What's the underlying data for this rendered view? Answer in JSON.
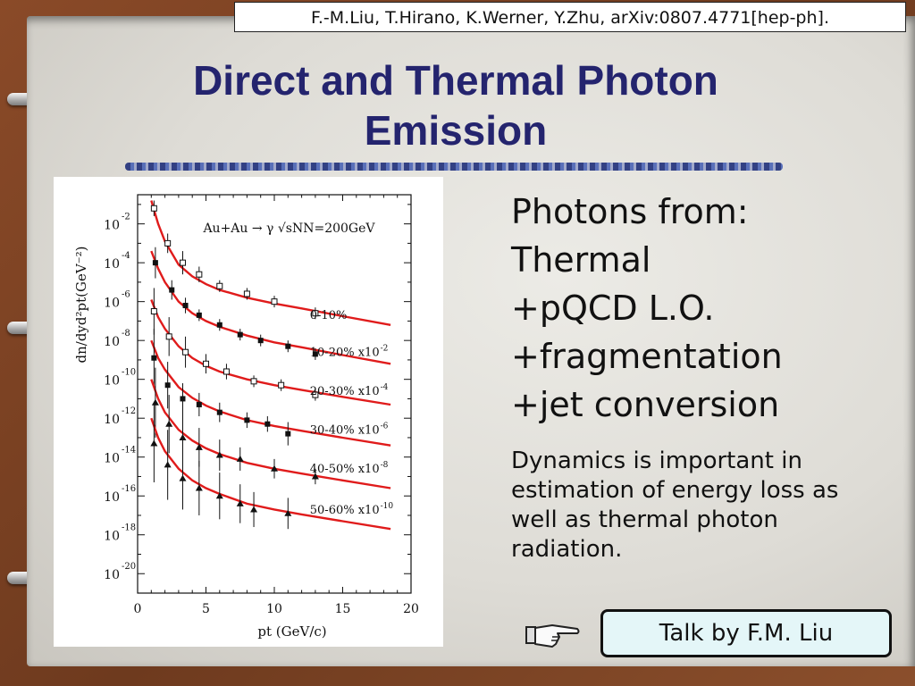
{
  "citation": "F.-M.Liu, T.Hirano, K.Werner, Y.Zhu, arXiv:0807.4771[hep-ph].",
  "title_line1": "Direct and Thermal Photon",
  "title_line2": "Emission",
  "photon_list": [
    "Photons from:",
    "Thermal",
    "+pQCD L.O.",
    "+fragmentation",
    "+jet conversion"
  ],
  "dynamics_text": "Dynamics is important in estimation of energy loss as well as thermal photon radiation.",
  "talk_button": "Talk by F.M. Liu",
  "icons": {
    "hand": "pointing-hand-icon"
  },
  "colors": {
    "title": "#24246e",
    "curve": "#e01b1b",
    "button_bg": "#e4f6f8"
  },
  "chart_data": {
    "type": "scatter",
    "title": "Au+Au → γ √sNN=200GeV",
    "xlabel": "pt (GeV/c)",
    "ylabel": "dn/dyd²pt(GeV⁻²)",
    "xlim": [
      0,
      20
    ],
    "ylim_log10": [
      -21,
      -0.5
    ],
    "yscale": "log",
    "x_ticks": [
      "0",
      "5",
      "10",
      "15",
      "20"
    ],
    "y_ticks": [
      {
        "exp": -2,
        "label": "-2"
      },
      {
        "exp": -4,
        "label": "-4"
      },
      {
        "exp": -6,
        "label": "-6"
      },
      {
        "exp": -8,
        "label": "-8"
      },
      {
        "exp": -10,
        "label": "-10"
      },
      {
        "exp": -12,
        "label": "-12"
      },
      {
        "exp": -14,
        "label": "-14"
      },
      {
        "exp": -16,
        "label": "-16"
      },
      {
        "exp": -18,
        "label": "-18"
      },
      {
        "exp": -20,
        "label": "-20"
      }
    ],
    "series": [
      {
        "name": "0-10%",
        "label_at_log10": -6.9,
        "curve_x": [
          1.0,
          1.5,
          2.0,
          3.0,
          4.0,
          5.0,
          6.0,
          8.0,
          10.0,
          12.0,
          15.0,
          18.5
        ],
        "curve_log10": [
          -0.8,
          -2.0,
          -2.9,
          -4.1,
          -4.7,
          -5.1,
          -5.4,
          -5.8,
          -6.1,
          -6.35,
          -6.75,
          -7.2
        ],
        "marker": "hollow",
        "points": [
          {
            "x": 1.2,
            "y": -1.2,
            "err": 0.4
          },
          {
            "x": 2.2,
            "y": -3.0,
            "err": 0.5
          },
          {
            "x": 3.3,
            "y": -4.0,
            "err": 0.6
          },
          {
            "x": 4.5,
            "y": -4.6,
            "err": 0.4
          },
          {
            "x": 6.0,
            "y": -5.2,
            "err": 0.3
          },
          {
            "x": 8.0,
            "y": -5.6,
            "err": 0.3
          },
          {
            "x": 10.0,
            "y": -6.0,
            "err": 0.3
          },
          {
            "x": 13.0,
            "y": -6.6,
            "err": 0.3
          }
        ]
      },
      {
        "name": "10-20% x10",
        "name_exp": "-2",
        "label_at_log10": -8.8,
        "curve_x": [
          1.0,
          1.5,
          2.0,
          3.0,
          4.0,
          5.0,
          6.0,
          8.0,
          10.0,
          12.0,
          15.0,
          18.5
        ],
        "curve_log10": [
          -3.4,
          -4.3,
          -5.0,
          -6.0,
          -6.6,
          -7.0,
          -7.3,
          -7.75,
          -8.1,
          -8.35,
          -8.75,
          -9.2
        ],
        "marker": "filled",
        "points": [
          {
            "x": 1.3,
            "y": -4.0,
            "err": 0.8
          },
          {
            "x": 2.5,
            "y": -5.4,
            "err": 0.5
          },
          {
            "x": 3.5,
            "y": -6.2,
            "err": 0.4
          },
          {
            "x": 4.5,
            "y": -6.7,
            "err": 0.3
          },
          {
            "x": 6.0,
            "y": -7.2,
            "err": 0.3
          },
          {
            "x": 7.5,
            "y": -7.7,
            "err": 0.3
          },
          {
            "x": 9.0,
            "y": -8.0,
            "err": 0.3
          },
          {
            "x": 11.0,
            "y": -8.3,
            "err": 0.3
          },
          {
            "x": 13.0,
            "y": -8.7,
            "err": 0.3
          }
        ]
      },
      {
        "name": "20-30% x10",
        "name_exp": "-4",
        "label_at_log10": -10.8,
        "curve_x": [
          1.0,
          1.5,
          2.0,
          3.0,
          4.0,
          5.0,
          6.0,
          8.0,
          10.0,
          12.0,
          15.0,
          18.5
        ],
        "curve_log10": [
          -5.9,
          -6.8,
          -7.4,
          -8.3,
          -8.9,
          -9.3,
          -9.6,
          -10.0,
          -10.3,
          -10.55,
          -10.9,
          -11.3
        ],
        "marker": "hollow",
        "points": [
          {
            "x": 1.2,
            "y": -6.5,
            "err": 1.2
          },
          {
            "x": 2.3,
            "y": -7.8,
            "err": 1.0
          },
          {
            "x": 3.5,
            "y": -8.6,
            "err": 0.8
          },
          {
            "x": 5.0,
            "y": -9.2,
            "err": 0.5
          },
          {
            "x": 6.5,
            "y": -9.6,
            "err": 0.4
          },
          {
            "x": 8.5,
            "y": -10.1,
            "err": 0.3
          },
          {
            "x": 10.5,
            "y": -10.3,
            "err": 0.3
          },
          {
            "x": 13.0,
            "y": -10.8,
            "err": 0.3
          }
        ]
      },
      {
        "name": "30-40% x10",
        "name_exp": "-6",
        "label_at_log10": -12.8,
        "curve_x": [
          1.0,
          1.5,
          2.0,
          3.0,
          4.0,
          5.0,
          6.0,
          8.0,
          10.0,
          12.0,
          15.0,
          18.5
        ],
        "curve_log10": [
          -8.0,
          -8.9,
          -9.5,
          -10.4,
          -10.95,
          -11.35,
          -11.65,
          -12.1,
          -12.4,
          -12.65,
          -13.0,
          -13.4
        ],
        "marker": "filled",
        "points": [
          {
            "x": 1.2,
            "y": -8.9,
            "err": 1.5
          },
          {
            "x": 2.2,
            "y": -10.3,
            "err": 1.2
          },
          {
            "x": 3.3,
            "y": -11.0,
            "err": 0.8
          },
          {
            "x": 4.5,
            "y": -11.3,
            "err": 0.6
          },
          {
            "x": 6.0,
            "y": -11.7,
            "err": 0.5
          },
          {
            "x": 8.0,
            "y": -12.1,
            "err": 0.4
          },
          {
            "x": 9.5,
            "y": -12.3,
            "err": 0.4
          },
          {
            "x": 11.0,
            "y": -12.8,
            "err": 0.6
          }
        ]
      },
      {
        "name": "40-50% x10",
        "name_exp": "-8",
        "label_at_log10": -14.8,
        "curve_x": [
          1.0,
          1.5,
          2.0,
          3.0,
          4.0,
          5.0,
          6.0,
          8.0,
          10.0,
          12.0,
          15.0,
          18.5
        ],
        "curve_log10": [
          -10.0,
          -11.0,
          -11.7,
          -12.6,
          -13.15,
          -13.55,
          -13.85,
          -14.3,
          -14.6,
          -14.85,
          -15.2,
          -15.6
        ],
        "marker": "triangle",
        "points": [
          {
            "x": 1.3,
            "y": -11.2,
            "err": 1.8
          },
          {
            "x": 2.3,
            "y": -12.3,
            "err": 1.5
          },
          {
            "x": 3.3,
            "y": -13.0,
            "err": 1.3
          },
          {
            "x": 4.5,
            "y": -13.5,
            "err": 1.0
          },
          {
            "x": 6.0,
            "y": -13.9,
            "err": 0.8
          },
          {
            "x": 7.5,
            "y": -14.1,
            "err": 0.6
          },
          {
            "x": 10.0,
            "y": -14.6,
            "err": 0.5
          },
          {
            "x": 13.0,
            "y": -15.0,
            "err": 0.4
          }
        ]
      },
      {
        "name": "50-60% x10",
        "name_exp": "-10",
        "label_at_log10": -16.9,
        "curve_x": [
          1.0,
          1.5,
          2.0,
          3.0,
          4.0,
          5.0,
          6.0,
          8.0,
          10.0,
          12.0,
          15.0,
          18.5
        ],
        "curve_log10": [
          -12.0,
          -13.0,
          -13.7,
          -14.6,
          -15.2,
          -15.6,
          -15.9,
          -16.4,
          -16.7,
          -16.95,
          -17.3,
          -17.7
        ],
        "marker": "triangle",
        "points": [
          {
            "x": 1.2,
            "y": -13.3,
            "err": 2.0
          },
          {
            "x": 2.2,
            "y": -14.4,
            "err": 1.8
          },
          {
            "x": 3.3,
            "y": -15.1,
            "err": 1.6
          },
          {
            "x": 4.5,
            "y": -15.6,
            "err": 1.4
          },
          {
            "x": 6.0,
            "y": -16.0,
            "err": 1.2
          },
          {
            "x": 7.5,
            "y": -16.4,
            "err": 1.0
          },
          {
            "x": 8.5,
            "y": -16.7,
            "err": 0.9
          },
          {
            "x": 11.0,
            "y": -16.9,
            "err": 0.8
          }
        ]
      }
    ]
  }
}
